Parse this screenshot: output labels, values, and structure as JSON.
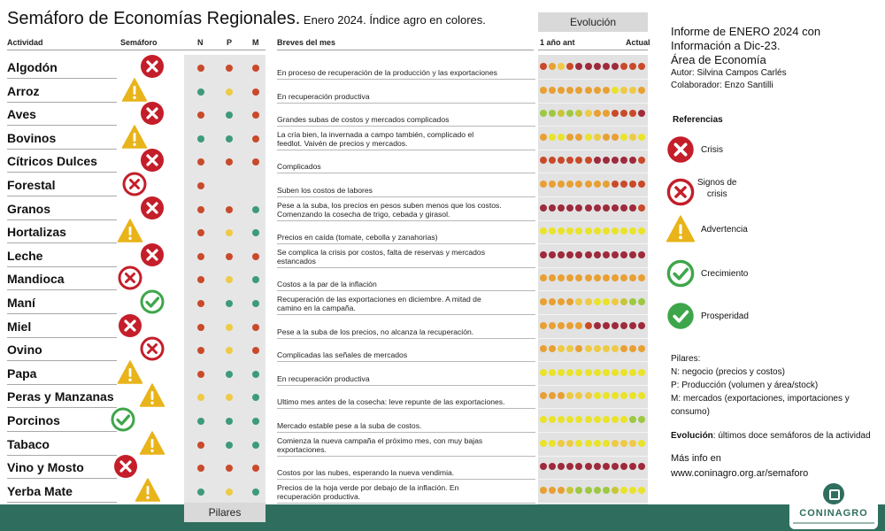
{
  "title": {
    "main": "Semáforo de Economías Regionales.",
    "sub": " Enero 2024. Índice agro en colores."
  },
  "colors": {
    "crisis": "#c41e2a",
    "warning": "#e8b41a",
    "growth": "#3ea64a",
    "red_dot": "#c94a2a",
    "orange_dot": "#e8a033",
    "yellow_dot": "#e9e32a",
    "lightorange_dot": "#eeca45",
    "teal_dot": "#3d9a7c",
    "darkred_dot": "#9e2a3c",
    "lightgreen_dot": "#9dc841",
    "olive_dot": "#c7c638",
    "footer": "#2f6e5e"
  },
  "headers": {
    "actividad": "Actividad",
    "semaforo": "Semáforo",
    "n": "N",
    "p": "P",
    "m": "M",
    "breves": "Breves del mes",
    "ago": "1 año ant",
    "actual": "Actual"
  },
  "buttons": {
    "evolucion": "Evolución",
    "pilares": "Pilares"
  },
  "rows": [
    {
      "name": "Algodón",
      "status": "crisis",
      "n": "red",
      "p": "red",
      "m": "red",
      "brief": [
        "En proceso de recuperación de la producción y las exportaciones"
      ],
      "evol": [
        "red",
        "orange",
        "lightorange",
        "red",
        "darkred",
        "darkred",
        "darkred",
        "darkred",
        "darkred",
        "red",
        "red",
        "red"
      ]
    },
    {
      "name": "Arroz",
      "status": "warning",
      "n": "teal",
      "p": "lightorange",
      "m": "red",
      "brief": [
        "En recuperación productiva"
      ],
      "evol": [
        "orange",
        "orange",
        "orange",
        "orange",
        "orange",
        "orange",
        "orange",
        "orange",
        "yellow",
        "lightorange",
        "lightorange",
        "orange"
      ]
    },
    {
      "name": "Aves",
      "status": "crisis",
      "n": "red",
      "p": "teal",
      "m": "red",
      "brief": [
        "Grandes subas de costos y mercados complicados"
      ],
      "evol": [
        "lightgreen",
        "lightgreen",
        "olive",
        "lightgreen",
        "olive",
        "lightorange",
        "orange",
        "orange",
        "red",
        "red",
        "red",
        "darkred"
      ]
    },
    {
      "name": "Bovinos",
      "status": "warning",
      "n": "teal",
      "p": "teal",
      "m": "red",
      "brief": [
        "La cría bien, la invernada a campo también, complicado el",
        "feedlot.  Vaivén de precios y mercados."
      ],
      "evol": [
        "orange",
        "yellow",
        "yellow",
        "orange",
        "orange",
        "yellow",
        "lightorange",
        "orange",
        "orange",
        "yellow",
        "lightorange",
        "yellow"
      ]
    },
    {
      "name": "Cítricos Dulces",
      "status": "crisis",
      "n": "red",
      "p": "red",
      "m": "red",
      "brief": [
        "Complicados"
      ],
      "evol": [
        "red",
        "red",
        "red",
        "red",
        "red",
        "red",
        "darkred",
        "darkred",
        "darkred",
        "darkred",
        "darkred",
        "red"
      ]
    },
    {
      "name": "Forestal",
      "status": "crisis-signs",
      "n": "red",
      "p": "",
      "m": "",
      "brief": [
        "Suben los costos de labores"
      ],
      "evol": [
        "orange",
        "orange",
        "orange",
        "orange",
        "orange",
        "orange",
        "orange",
        "orange",
        "red",
        "red",
        "red",
        "red"
      ]
    },
    {
      "name": "Granos",
      "status": "crisis",
      "n": "red",
      "p": "red",
      "m": "teal",
      "brief": [
        "Pese a la suba, los precios en pesos suben menos que los costos.",
        "Comenzando la cosecha de trigo, cebada y girasol."
      ],
      "evol": [
        "darkred",
        "darkred",
        "darkred",
        "darkred",
        "darkred",
        "darkred",
        "darkred",
        "darkred",
        "darkred",
        "darkred",
        "darkred",
        "red"
      ]
    },
    {
      "name": "Hortalizas",
      "status": "warning",
      "n": "red",
      "p": "lightorange",
      "m": "teal",
      "brief": [
        "Precios en caída (tomate, cebolla y zanahorias)"
      ],
      "evol": [
        "yellow",
        "yellow",
        "yellow",
        "yellow",
        "yellow",
        "yellow",
        "yellow",
        "yellow",
        "yellow",
        "yellow",
        "yellow",
        "yellow"
      ]
    },
    {
      "name": "Leche",
      "status": "crisis",
      "n": "red",
      "p": "red",
      "m": "red",
      "brief": [
        "Se complica la crisis por costos, falta de reservas y mercados",
        "estancados"
      ],
      "evol": [
        "darkred",
        "darkred",
        "darkred",
        "darkred",
        "darkred",
        "darkred",
        "darkred",
        "darkred",
        "darkred",
        "darkred",
        "darkred",
        "darkred"
      ]
    },
    {
      "name": "Mandioca",
      "status": "crisis-signs",
      "n": "red",
      "p": "lightorange",
      "m": "teal",
      "brief": [
        "Costos a la par de la inflación"
      ],
      "evol": [
        "orange",
        "orange",
        "orange",
        "orange",
        "orange",
        "orange",
        "orange",
        "orange",
        "orange",
        "orange",
        "orange",
        "orange"
      ]
    },
    {
      "name": "Maní",
      "status": "growth",
      "n": "red",
      "p": "teal",
      "m": "teal",
      "brief": [
        "Recuperación de las exportaciones en diciembre. A mitad de",
        "camino en la campaña."
      ],
      "evol": [
        "orange",
        "orange",
        "orange",
        "orange",
        "lightorange",
        "lightorange",
        "yellow",
        "yellow",
        "lightorange",
        "olive",
        "lightgreen",
        "lightgreen"
      ]
    },
    {
      "name": "Miel",
      "status": "crisis",
      "n": "red",
      "p": "lightorange",
      "m": "red",
      "brief": [
        "Pese a la suba de los precios, no alcanza la recuperación."
      ],
      "evol": [
        "orange",
        "orange",
        "orange",
        "orange",
        "orange",
        "red",
        "darkred",
        "darkred",
        "darkred",
        "darkred",
        "darkred",
        "darkred"
      ]
    },
    {
      "name": "Ovino",
      "status": "crisis-signs",
      "n": "red",
      "p": "lightorange",
      "m": "red",
      "brief": [
        "Complicadas las señales de mercados"
      ],
      "evol": [
        "orange",
        "orange",
        "lightorange",
        "lightorange",
        "orange",
        "lightorange",
        "lightorange",
        "lightorange",
        "lightorange",
        "orange",
        "orange",
        "orange"
      ]
    },
    {
      "name": "Papa",
      "status": "warning",
      "n": "red",
      "p": "teal",
      "m": "teal",
      "brief": [
        "En recuperación productiva"
      ],
      "evol": [
        "yellow",
        "yellow",
        "yellow",
        "yellow",
        "yellow",
        "yellow",
        "yellow",
        "yellow",
        "yellow",
        "yellow",
        "yellow",
        "yellow"
      ]
    },
    {
      "name": "Peras y Manzanas",
      "status": "warning",
      "n": "lightorange",
      "p": "lightorange",
      "m": "teal",
      "brief": [
        "Ultimo mes antes de la cosecha: leve repunte de las exportaciones."
      ],
      "evol": [
        "orange",
        "orange",
        "orange",
        "lightorange",
        "lightorange",
        "lightorange",
        "yellow",
        "yellow",
        "yellow",
        "yellow",
        "yellow",
        "yellow"
      ]
    },
    {
      "name": "Porcinos",
      "status": "growth",
      "n": "teal",
      "p": "teal",
      "m": "teal",
      "brief": [
        "Mercado estable pese a la suba de costos."
      ],
      "evol": [
        "yellow",
        "yellow",
        "yellow",
        "yellow",
        "yellow",
        "yellow",
        "yellow",
        "yellow",
        "yellow",
        "yellow",
        "lightgreen",
        "lightgreen"
      ]
    },
    {
      "name": "Tabaco",
      "status": "warning",
      "n": "red",
      "p": "teal",
      "m": "teal",
      "brief": [
        "Comienza la nueva campaña el próximo mes, con muy bajas",
        "exportaciones."
      ],
      "evol": [
        "yellow",
        "yellow",
        "lightorange",
        "lightorange",
        "yellow",
        "yellow",
        "yellow",
        "yellow",
        "lightorange",
        "lightorange",
        "lightorange",
        "yellow"
      ]
    },
    {
      "name": "Vino y Mosto",
      "status": "crisis",
      "n": "red",
      "p": "red",
      "m": "red",
      "brief": [
        "Costos por las nubes, esperando la nueva vendimia."
      ],
      "evol": [
        "darkred",
        "darkred",
        "darkred",
        "darkred",
        "darkred",
        "darkred",
        "darkred",
        "darkred",
        "darkred",
        "darkred",
        "darkred",
        "darkred"
      ]
    },
    {
      "name": "Yerba Mate",
      "status": "warning",
      "n": "teal",
      "p": "lightorange",
      "m": "teal",
      "brief": [
        "Precios de la hoja verde por debajo de la inflación. En",
        "recuperación productiva."
      ],
      "evol": [
        "orange",
        "orange",
        "orange",
        "olive",
        "lightgreen",
        "lightgreen",
        "lightgreen",
        "lightgreen",
        "olive",
        "yellow",
        "yellow",
        "yellow"
      ]
    }
  ],
  "side": {
    "report_lines": [
      "Informe de ENERO 2024 con",
      "Información a Dic-23.",
      "Área de Economía"
    ],
    "author": "Autor: Silvina Campos Carlés",
    "collaborator": "Colaborador: Enzo Santilli",
    "refs_title": "Referencias",
    "refs": [
      {
        "key": "crisis",
        "label": "Crisis"
      },
      {
        "key": "crisis-signs",
        "label": "Signos de\ncrisis"
      },
      {
        "key": "warning",
        "label": "Advertencia"
      },
      {
        "key": "growth",
        "label": "Crecimiento"
      },
      {
        "key": "prosperity",
        "label": "Prosperidad"
      }
    ],
    "pilares_title": "Pilares:",
    "pilares_items": [
      "N: negocio (precios y costos)",
      "P: Producción (volumen y área/stock)",
      "M: mercados (exportaciones, importaciones y consumo)"
    ],
    "evol_label": "Evolución",
    "evol_text": ": últimos doce semáforos de la actividad",
    "more_info": "Más info en",
    "url": "www.coninagro.org.ar/semaforo",
    "logo_text": "CONINAGRO"
  }
}
